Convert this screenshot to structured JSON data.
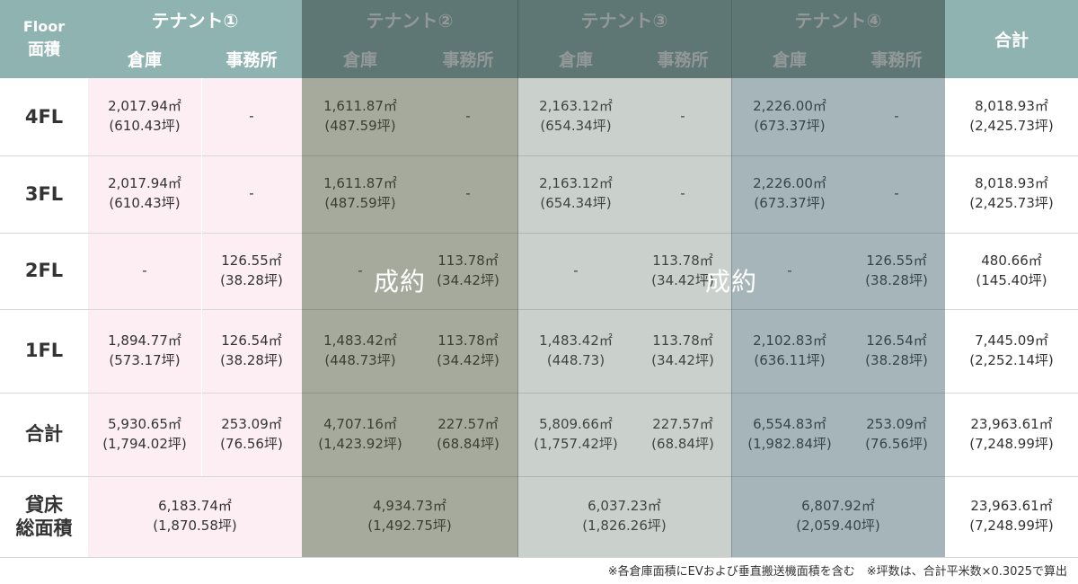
{
  "header": {
    "floor_label": "Floor",
    "area_label": "面積",
    "tenants": [
      "テナント①",
      "テナント②",
      "テナント③",
      "テナント④"
    ],
    "sub_warehouse": "倉庫",
    "sub_office": "事務所",
    "total": "合計"
  },
  "rows": [
    {
      "label": "4FL",
      "cells": [
        [
          "2,017.94㎡",
          "(610.43坪)"
        ],
        [
          "-"
        ],
        [
          "1,611.87㎡",
          "(487.59坪)"
        ],
        [
          "-"
        ],
        [
          "2,163.12㎡",
          "(654.34坪)"
        ],
        [
          "-"
        ],
        [
          "2,226.00㎡",
          "(673.37坪)"
        ],
        [
          "-"
        ]
      ],
      "total": [
        "8,018.93㎡",
        "(2,425.73坪)"
      ]
    },
    {
      "label": "3FL",
      "cells": [
        [
          "2,017.94㎡",
          "(610.43坪)"
        ],
        [
          "-"
        ],
        [
          "1,611.87㎡",
          "(487.59坪)"
        ],
        [
          "-"
        ],
        [
          "2,163.12㎡",
          "(654.34坪)"
        ],
        [
          "-"
        ],
        [
          "2,226.00㎡",
          "(673.37坪)"
        ],
        [
          "-"
        ]
      ],
      "total": [
        "8,018.93㎡",
        "(2,425.73坪)"
      ]
    },
    {
      "label": "2FL",
      "cells": [
        [
          "-"
        ],
        [
          "126.55㎡",
          "(38.28坪)"
        ],
        [
          "-"
        ],
        [
          "113.78㎡",
          "(34.42坪)"
        ],
        [
          "-"
        ],
        [
          "113.78㎡",
          "(34.42坪)"
        ],
        [
          "-"
        ],
        [
          "126.55㎡",
          "(38.28坪)"
        ]
      ],
      "total": [
        "480.66㎡",
        "(145.40坪)"
      ]
    },
    {
      "label": "1FL",
      "cells": [
        [
          "1,894.77㎡",
          "(573.17坪)"
        ],
        [
          "126.54㎡",
          "(38.28坪)"
        ],
        [
          "1,483.42㎡",
          "(448.73坪)"
        ],
        [
          "113.78㎡",
          "(34.42坪)"
        ],
        [
          "1,483.42㎡",
          "(448.73)"
        ],
        [
          "113.78㎡",
          "(34.42坪)"
        ],
        [
          "2,102.83㎡",
          "(636.11坪)"
        ],
        [
          "126.54㎡",
          "(38.28坪)"
        ]
      ],
      "total": [
        "7,445.09㎡",
        "(2,252.14坪)"
      ]
    },
    {
      "label": "合計",
      "cells": [
        [
          "5,930.65㎡",
          "(1,794.02坪)"
        ],
        [
          "253.09㎡",
          "(76.56坪)"
        ],
        [
          "4,707.16㎡",
          "(1,423.92坪)"
        ],
        [
          "227.57㎡",
          "(68.84坪)"
        ],
        [
          "5,809.66㎡",
          "(1,757.42坪)"
        ],
        [
          "227.57㎡",
          "(68.84坪)"
        ],
        [
          "6,554.83㎡",
          "(1,982.84坪)"
        ],
        [
          "253.09㎡",
          "(76.56坪)"
        ]
      ],
      "total": [
        "23,963.61㎡",
        "(7,248.99坪)"
      ]
    }
  ],
  "rental": {
    "label_line1": "貸床",
    "label_line2": "総面積",
    "cells": [
      [
        "6,183.74㎡",
        "(1,870.58坪)"
      ],
      [
        "4,934.73㎡",
        "(1,492.75坪)"
      ],
      [
        "6,037.23㎡",
        "(1,826.26坪)"
      ],
      [
        "6,807.92㎡",
        "(2,059.40坪)"
      ]
    ],
    "total": [
      "23,963.61㎡",
      "(7,248.99坪)"
    ]
  },
  "contracted_label": "成約",
  "footnote": "※各倉庫面積にEVおよび垂直搬送機面積を含む　※坪数は、合計平米数×0.3025で算出",
  "colors": {
    "header": "#8fb3b1",
    "tenant1_bg": "#fdeef3",
    "tenant2_overlay": "#6f7658",
    "tenant3_overlay": "#8ea59a",
    "tenant4_overlay": "#5f8b96"
  }
}
